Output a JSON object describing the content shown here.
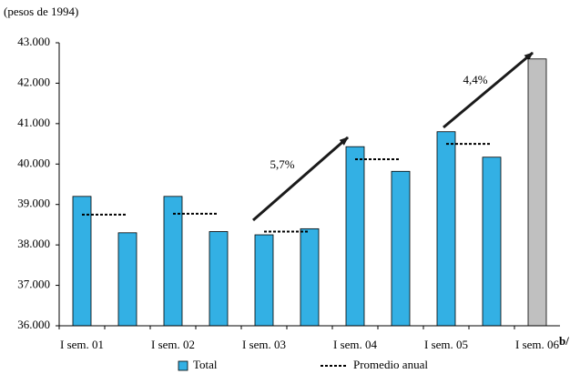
{
  "chart_data": {
    "type": "bar",
    "subtitle": "(pesos de 1994)",
    "categories": [
      "I sem. 01",
      null,
      "I sem. 02",
      null,
      "I sem. 03",
      null,
      "I sem. 04",
      null,
      "I sem. 05",
      null,
      "I sem. 06"
    ],
    "footnote_mark": "b/",
    "series": [
      {
        "name": "Total",
        "color": "#33b0e4",
        "colors": [
          "#33b0e4",
          "#33b0e4",
          "#33b0e4",
          "#33b0e4",
          "#33b0e4",
          "#33b0e4",
          "#33b0e4",
          "#33b0e4",
          "#33b0e4",
          "#33b0e4",
          "#c0c0c0"
        ],
        "values": [
          39200,
          38300,
          39200,
          38330,
          38250,
          38400,
          40430,
          39820,
          40800,
          40170,
          42600
        ]
      },
      {
        "name": "Promedio anual",
        "color": "#000000",
        "dashed": true,
        "values": [
          38750,
          38750,
          38770,
          38770,
          38330,
          38330,
          40120,
          40120,
          40500,
          40500,
          null
        ]
      }
    ],
    "ylim": [
      36000,
      43000
    ],
    "yticks": [
      {
        "value": 36000,
        "label": "36.000"
      },
      {
        "value": 37000,
        "label": "37.000"
      },
      {
        "value": 38000,
        "label": "38.000"
      },
      {
        "value": 39000,
        "label": "39.000"
      },
      {
        "value": 40000,
        "label": "40.000"
      },
      {
        "value": 41000,
        "label": "41.000"
      },
      {
        "value": 42000,
        "label": "42.000"
      },
      {
        "value": 43000,
        "label": "43.000"
      }
    ],
    "annotations": [
      "5,7%",
      "4,4%"
    ]
  }
}
